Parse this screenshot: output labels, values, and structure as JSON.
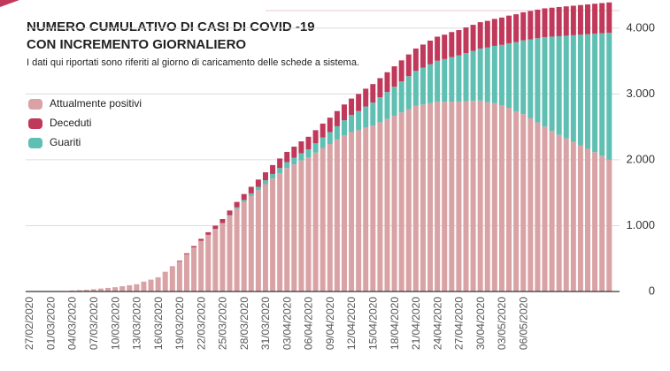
{
  "chart_data": {
    "type": "stacked-bar",
    "title": [
      "NUMERO CUMULATIVO DI CASI DI COVID -19",
      "CON INCREMENTO GIORNALIERO"
    ],
    "subtitle": "I dati qui riportati sono riferiti al giorno di caricamento delle schede a sistema.",
    "categories": [
      "27/02/2020",
      null,
      null,
      "01/03/2020",
      null,
      null,
      "04/03/2020",
      null,
      null,
      "07/03/2020",
      null,
      null,
      "10/03/2020",
      null,
      null,
      "13/03/2020",
      null,
      null,
      "16/03/2020",
      null,
      null,
      "19/03/2020",
      null,
      null,
      "22/03/2020",
      null,
      null,
      "25/03/2020",
      null,
      null,
      "28/03/2020",
      null,
      null,
      "31/03/2020",
      null,
      null,
      "03/04/2020",
      null,
      null,
      "06/04/2020",
      null,
      null,
      "09/04/2020",
      null,
      null,
      "12/04/2020",
      null,
      null,
      "15/04/2020",
      null,
      null,
      "18/04/2020",
      null,
      null,
      "21/04/2020",
      null,
      null,
      "24/04/2020",
      null,
      null,
      "27/04/2020",
      null,
      null,
      "30/04/2020",
      null,
      null,
      "03/05/2020",
      null,
      null,
      "06/05/2020",
      null,
      null,
      null,
      null,
      null,
      null,
      null,
      null,
      null,
      null,
      null,
      null
    ],
    "series": [
      {
        "name": "Attualmente positivi",
        "color": "#d9a3a5",
        "values": [
          0,
          0,
          0,
          2,
          3,
          5,
          15,
          20,
          25,
          35,
          45,
          55,
          65,
          80,
          95,
          110,
          150,
          180,
          215,
          300,
          375,
          460,
          565,
          670,
          770,
          860,
          950,
          1040,
          1150,
          1260,
          1360,
          1450,
          1540,
          1630,
          1715,
          1795,
          1875,
          1930,
          1990,
          2040,
          2110,
          2180,
          2240,
          2310,
          2370,
          2420,
          2450,
          2490,
          2520,
          2570,
          2620,
          2670,
          2720,
          2770,
          2820,
          2840,
          2860,
          2885,
          2880,
          2880,
          2885,
          2890,
          2895,
          2900,
          2875,
          2860,
          2825,
          2790,
          2737,
          2694,
          2630,
          2567,
          2504,
          2441,
          2378,
          2325,
          2272,
          2220,
          2167,
          2115,
          2062,
          2000
        ]
      },
      {
        "name": "Deceduti",
        "color": "#c0395a",
        "values": [
          0,
          0,
          0,
          0,
          0,
          0,
          0,
          0,
          0,
          0,
          0,
          0,
          0,
          0,
          0,
          0,
          0,
          0,
          0,
          0,
          5,
          10,
          15,
          20,
          30,
          40,
          50,
          60,
          70,
          80,
          90,
          100,
          110,
          120,
          135,
          145,
          155,
          170,
          180,
          190,
          200,
          210,
          220,
          230,
          240,
          250,
          260,
          270,
          280,
          290,
          300,
          310,
          320,
          330,
          340,
          350,
          360,
          365,
          370,
          380,
          385,
          390,
          395,
          400,
          405,
          410,
          415,
          420,
          423,
          426,
          430,
          433,
          436,
          439,
          442,
          445,
          448,
          450,
          453,
          455,
          458,
          460
        ]
      },
      {
        "name": "Guariti",
        "color": "#5fbfb3",
        "values": [
          0,
          0,
          0,
          0,
          0,
          0,
          0,
          0,
          0,
          0,
          0,
          0,
          0,
          0,
          0,
          0,
          0,
          0,
          0,
          0,
          0,
          0,
          0,
          0,
          0,
          0,
          0,
          0,
          10,
          20,
          30,
          40,
          50,
          60,
          70,
          80,
          90,
          100,
          110,
          120,
          140,
          160,
          180,
          200,
          230,
          260,
          290,
          320,
          350,
          380,
          410,
          440,
          470,
          500,
          530,
          560,
          590,
          620,
          650,
          680,
          700,
          730,
          760,
          790,
          830,
          870,
          920,
          980,
          1050,
          1120,
          1200,
          1280,
          1360,
          1430,
          1500,
          1560,
          1620,
          1680,
          1740,
          1800,
          1860,
          1930
        ]
      }
    ],
    "ylim": [
      0,
      4400
    ],
    "yticks": [
      0,
      {
        "value": 1000,
        "label": "1.000"
      },
      {
        "value": 2000,
        "label": "2.000"
      },
      {
        "value": 3000,
        "label": "3.000"
      },
      {
        "value": 4000,
        "label": "4.000"
      }
    ],
    "grid": true
  }
}
